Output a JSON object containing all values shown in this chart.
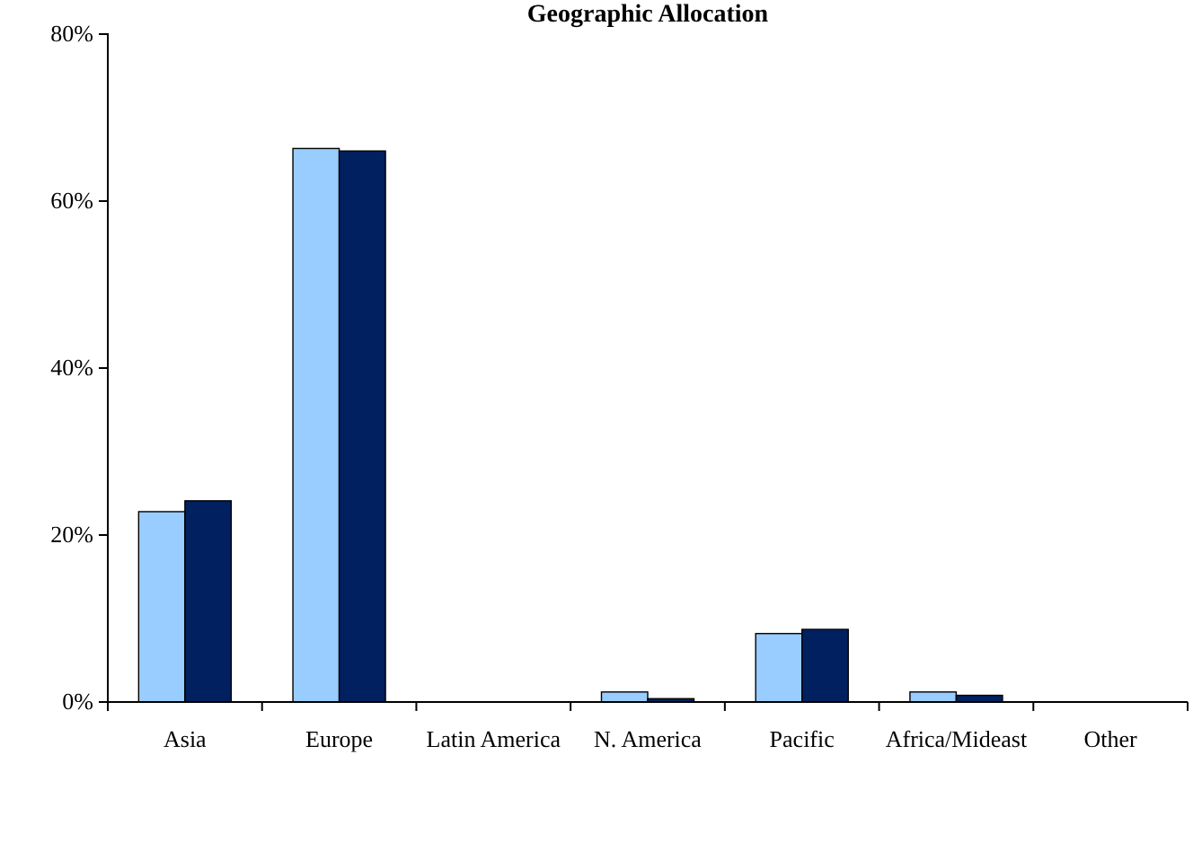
{
  "chart_data": {
    "type": "bar",
    "title": "Geographic Allocation",
    "categories": [
      "Asia",
      "Europe",
      "Latin America",
      "N. America",
      "Pacific",
      "Africa/Mideast",
      "Other"
    ],
    "series": [
      {
        "color": "#99ccff",
        "values": [
          22.8,
          66.3,
          0,
          1.2,
          8.2,
          1.2,
          0
        ]
      },
      {
        "color": "#002060",
        "values": [
          24.1,
          66.0,
          0,
          0.4,
          8.7,
          0.8,
          0
        ]
      }
    ],
    "ylim": [
      0,
      80
    ],
    "yticks": [
      {
        "value": 0,
        "label": "0%"
      },
      {
        "value": 20,
        "label": "20%"
      },
      {
        "value": 40,
        "label": "40%"
      },
      {
        "value": 60,
        "label": "60%"
      },
      {
        "value": 80,
        "label": "80%"
      }
    ],
    "grid": false,
    "legend": false
  }
}
